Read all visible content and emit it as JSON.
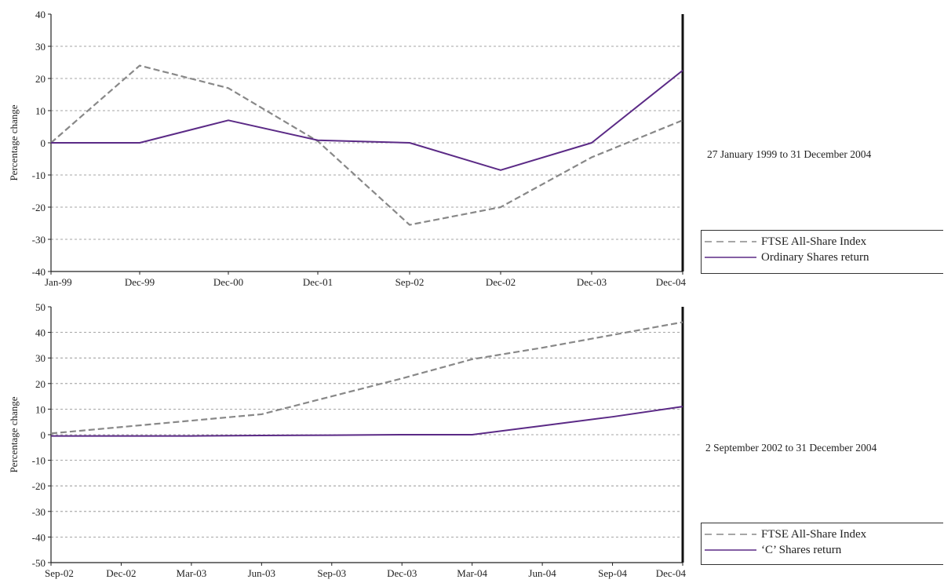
{
  "chart_data": [
    {
      "type": "line",
      "ylabel": "Percentage change",
      "ylim": [
        -40,
        40
      ],
      "yticks": [
        -40,
        -30,
        -20,
        -10,
        0,
        10,
        20,
        30,
        40
      ],
      "categories": [
        "Jan-99",
        "Dec-99",
        "Dec-00",
        "Dec-01",
        "Sep-02",
        "Dec-02",
        "Dec-03",
        "Dec-04"
      ],
      "series": [
        {
          "name": "FTSE All-Share Index",
          "style": "dashed",
          "color": "#888888",
          "values": [
            0,
            24,
            17,
            0.5,
            -25.5,
            -20,
            -4.5,
            7
          ]
        },
        {
          "name": "Ordinary Shares return",
          "style": "solid",
          "color": "#5b2a86",
          "values": [
            0,
            0,
            7,
            0.8,
            0,
            -8.5,
            0,
            22.5
          ]
        }
      ],
      "period_label": "27 January 1999 to 31 December 2004",
      "grid": true,
      "legend": "bottom-right"
    },
    {
      "type": "line",
      "ylabel": "Percentage change",
      "ylim": [
        -50,
        50
      ],
      "yticks": [
        -50,
        -40,
        -30,
        -20,
        -10,
        0,
        10,
        20,
        30,
        40,
        50
      ],
      "categories": [
        "Sep-02",
        "Dec-02",
        "Mar-03",
        "Jun-03",
        "Sep-03",
        "Dec-03",
        "Mar-04",
        "Jun-04",
        "Sep-04",
        "Dec-04"
      ],
      "series": [
        {
          "name": "FTSE All-Share Index",
          "style": "dashed",
          "color": "#888888",
          "values": [
            0.5,
            3,
            5.5,
            8,
            15,
            22,
            29.5,
            34,
            39,
            44
          ]
        },
        {
          "name": "‘C’ Shares return",
          "style": "solid",
          "color": "#5b2a86",
          "values": [
            -0.5,
            -0.5,
            -0.5,
            -0.3,
            -0.2,
            0,
            0,
            3.5,
            7,
            11
          ]
        }
      ],
      "period_label": "2 September 2002 to 31 December 2004",
      "grid": true,
      "legend": "bottom-right"
    }
  ]
}
